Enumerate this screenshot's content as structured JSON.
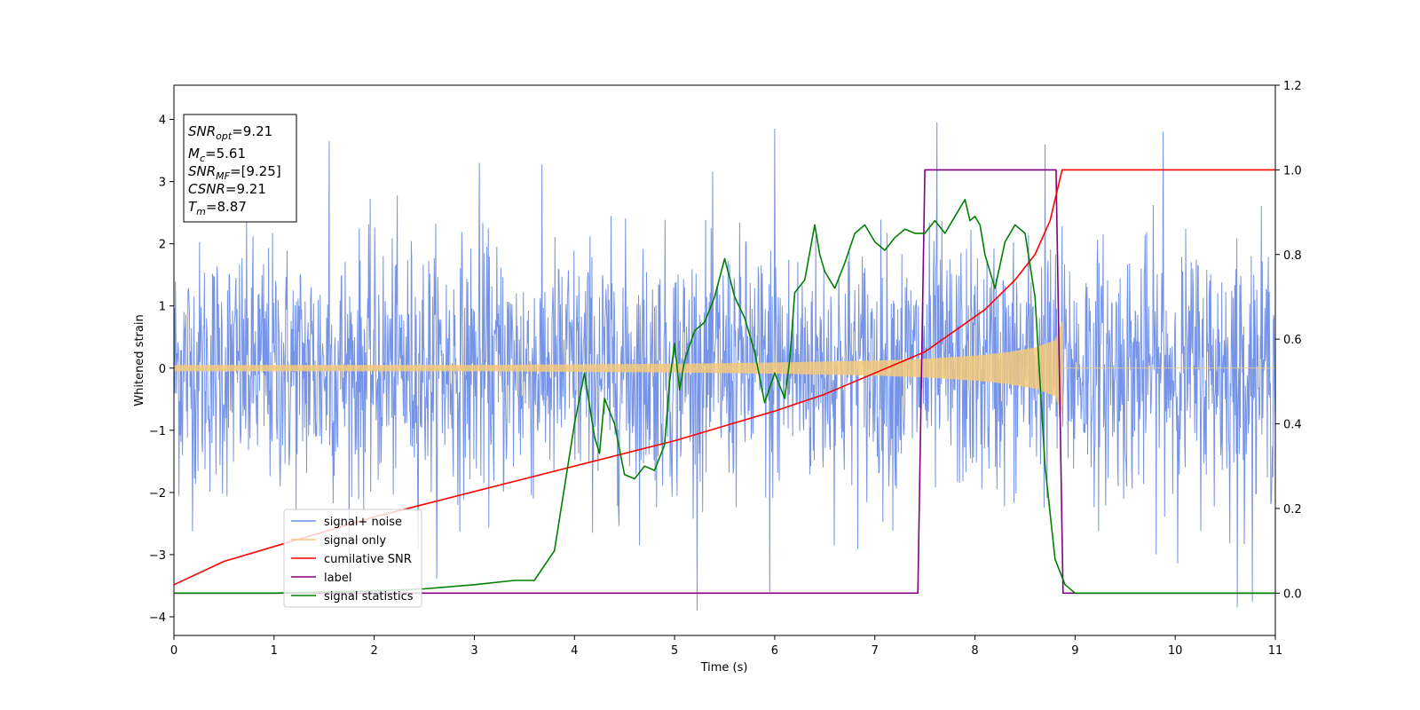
{
  "chart_data": {
    "type": "line",
    "xlabel": "Time (s)",
    "ylabel": "Whitened strain",
    "xlim": [
      0,
      11
    ],
    "ylim": [
      -4.3,
      4.55
    ],
    "ylim_right": [
      -0.1,
      1.2
    ],
    "xticks": [
      "0",
      "1",
      "2",
      "3",
      "4",
      "5",
      "6",
      "7",
      "8",
      "9",
      "10",
      "11"
    ],
    "yticks_left": [
      "−4",
      "−3",
      "−2",
      "−1",
      "0",
      "1",
      "2",
      "3",
      "4"
    ],
    "yticks_right": [
      "0.0",
      "0.2",
      "0.4",
      "0.6",
      "0.8",
      "1.0",
      "1.2"
    ],
    "grid": false,
    "legend_position": "lower-left",
    "info_box": {
      "snr_opt": {
        "sym": "SNR",
        "sub": "opt",
        "value": "=9.21"
      },
      "mc": {
        "sym": "M",
        "sub": "c",
        "value": "=5.61"
      },
      "snr_mf": {
        "sym": "SNR",
        "sub": "MF",
        "value": "=[9.25]"
      },
      "csnr": {
        "sym": "CSNR",
        "sub": "",
        "value": "=9.21"
      },
      "tm": {
        "sym": "T",
        "sub": "m",
        "value": "=8.87"
      }
    },
    "series": [
      {
        "name": "signal+ noise",
        "axis": "left",
        "color": "#6f8ee6",
        "description_values": {
          "std": 1.0,
          "peaks": [
            [
              1.55,
              3.65
            ],
            [
              3.05,
              3.3
            ],
            [
              6.0,
              3.85
            ],
            [
              7.62,
              3.95
            ],
            [
              8.7,
              3.6
            ],
            [
              9.88,
              3.8
            ],
            [
              10.62,
              -3.85
            ],
            [
              5.95,
              -3.6
            ]
          ]
        }
      },
      {
        "name": "signal only",
        "axis": "left",
        "color": "#f5c97a",
        "envelope_x": [
          0,
          1,
          2,
          3,
          4,
          5,
          6,
          7,
          7.5,
          8,
          8.3,
          8.6,
          8.8,
          8.87,
          8.88,
          11
        ],
        "envelope_amp": [
          0.05,
          0.05,
          0.05,
          0.05,
          0.06,
          0.07,
          0.09,
          0.12,
          0.15,
          0.2,
          0.25,
          0.33,
          0.45,
          0.75,
          0.0,
          0.0
        ]
      },
      {
        "name": "cumilative SNR",
        "axis": "right",
        "color": "#ff0000",
        "x": [
          0,
          0.5,
          1,
          1.5,
          2,
          2.5,
          3,
          3.5,
          4,
          4.5,
          5,
          5.5,
          6,
          6.5,
          7,
          7.5,
          7.8,
          8.1,
          8.4,
          8.6,
          8.75,
          8.87,
          9.0,
          11
        ],
        "y": [
          0.02,
          0.075,
          0.11,
          0.145,
          0.18,
          0.21,
          0.24,
          0.27,
          0.3,
          0.33,
          0.36,
          0.395,
          0.43,
          0.47,
          0.52,
          0.57,
          0.62,
          0.67,
          0.74,
          0.8,
          0.88,
          1.0,
          1.0,
          1.0
        ]
      },
      {
        "name": "label",
        "axis": "right",
        "color": "#800080",
        "x": [
          0,
          7.43,
          7.5,
          8.81,
          8.88,
          11
        ],
        "y": [
          0,
          0,
          1,
          1,
          0,
          0
        ]
      },
      {
        "name": "signal statistics",
        "axis": "right",
        "color": "#008000",
        "x": [
          0,
          1,
          2,
          2.5,
          3,
          3.4,
          3.6,
          3.8,
          3.9,
          4.0,
          4.1,
          4.2,
          4.25,
          4.3,
          4.4,
          4.5,
          4.6,
          4.7,
          4.8,
          4.9,
          4.95,
          5.0,
          5.05,
          5.1,
          5.2,
          5.3,
          5.4,
          5.5,
          5.6,
          5.7,
          5.8,
          5.9,
          6.0,
          6.1,
          6.15,
          6.2,
          6.3,
          6.4,
          6.45,
          6.5,
          6.6,
          6.7,
          6.8,
          6.9,
          7.0,
          7.1,
          7.2,
          7.3,
          7.4,
          7.5,
          7.6,
          7.7,
          7.8,
          7.9,
          7.95,
          8.0,
          8.05,
          8.1,
          8.2,
          8.3,
          8.4,
          8.5,
          8.6,
          8.7,
          8.8,
          8.9,
          9.0,
          9.2,
          11
        ],
        "y": [
          0.0,
          0.0,
          0.005,
          0.01,
          0.02,
          0.03,
          0.03,
          0.1,
          0.25,
          0.4,
          0.52,
          0.37,
          0.33,
          0.46,
          0.4,
          0.28,
          0.27,
          0.3,
          0.29,
          0.35,
          0.5,
          0.59,
          0.48,
          0.55,
          0.62,
          0.64,
          0.7,
          0.79,
          0.7,
          0.65,
          0.57,
          0.45,
          0.52,
          0.46,
          0.55,
          0.71,
          0.74,
          0.87,
          0.8,
          0.76,
          0.72,
          0.78,
          0.85,
          0.87,
          0.83,
          0.81,
          0.84,
          0.86,
          0.85,
          0.85,
          0.88,
          0.85,
          0.89,
          0.93,
          0.88,
          0.89,
          0.87,
          0.8,
          0.72,
          0.83,
          0.87,
          0.85,
          0.7,
          0.3,
          0.08,
          0.02,
          0.0,
          0.0,
          0.0
        ]
      }
    ]
  }
}
